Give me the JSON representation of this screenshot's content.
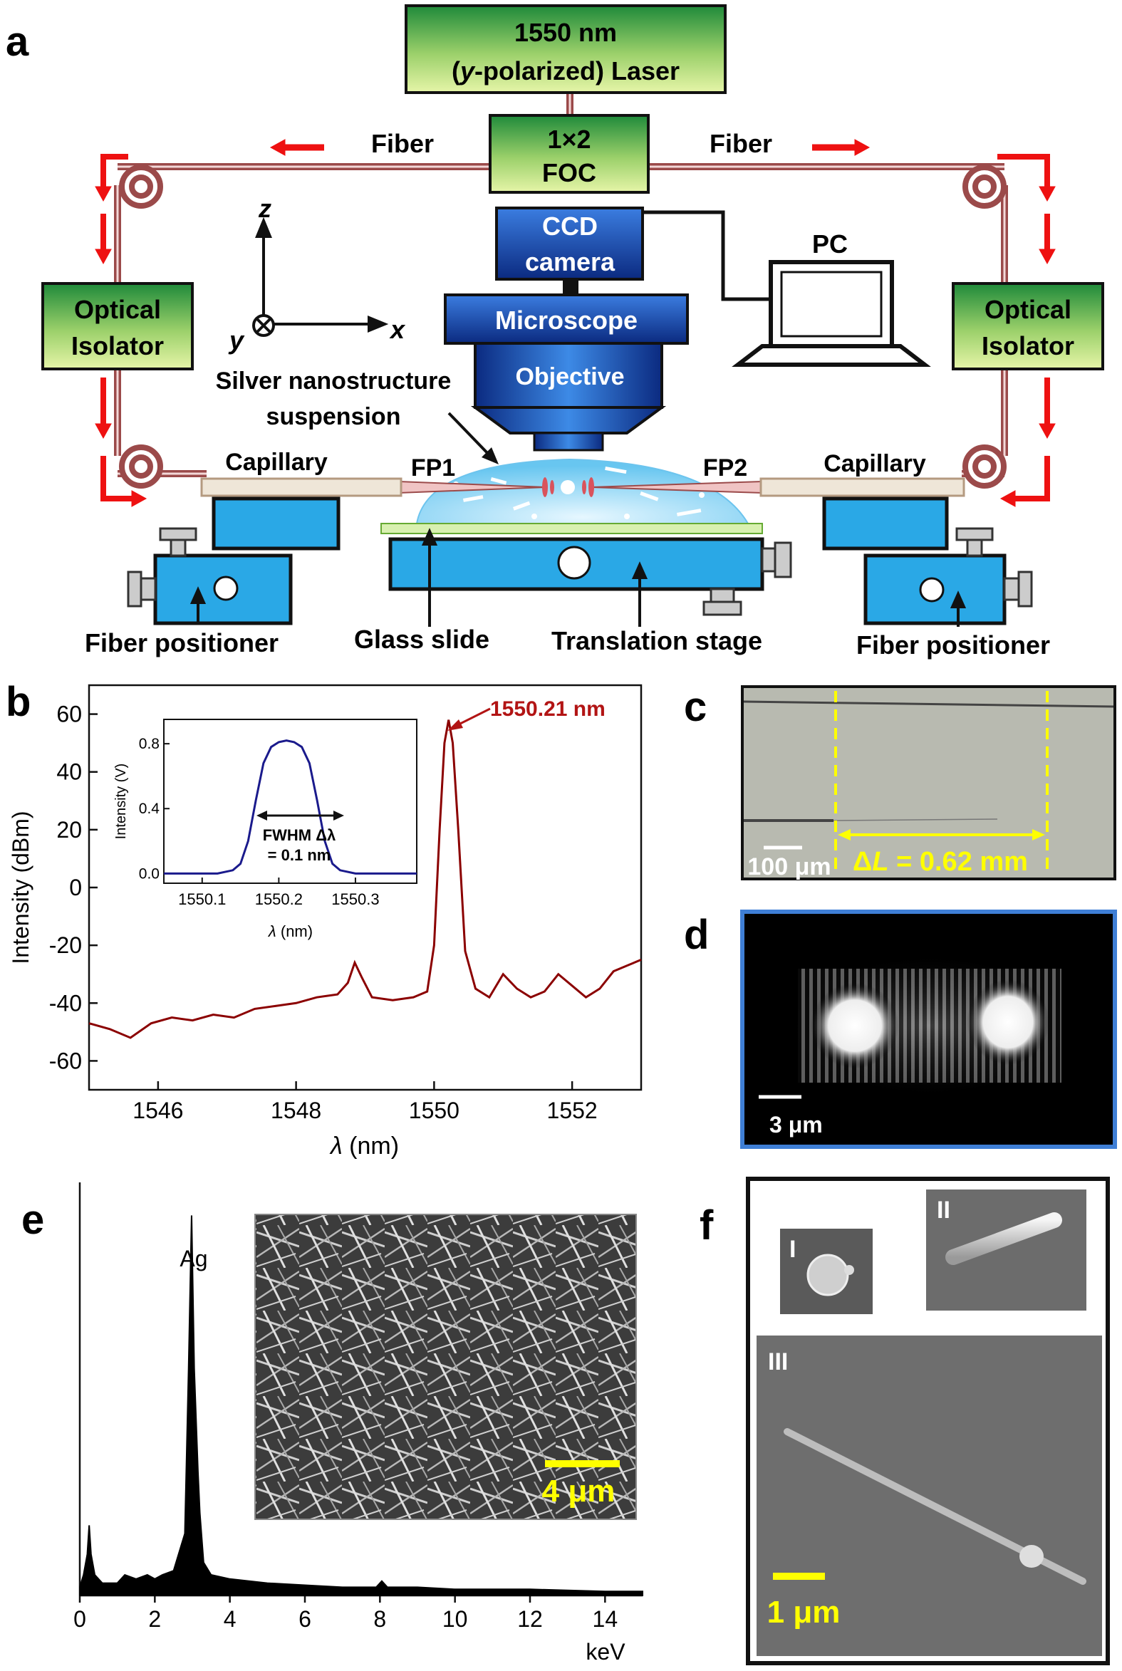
{
  "panel_a": {
    "letter": "a",
    "laser_line1": "1550 nm",
    "laser_line2_open": "(",
    "laser_line2_italic": "y",
    "laser_line2_rest": "-polarized) Laser",
    "foc_line1": "1×2",
    "foc_line2": "FOC",
    "fiber_left": "Fiber",
    "fiber_right": "Fiber",
    "ccd_line1": "CCD",
    "ccd_line2": "camera",
    "pc": "PC",
    "microscope": "Microscope",
    "objective": "Objective",
    "isolator_line1": "Optical",
    "isolator_line2": "Isolator",
    "axis_z": "z",
    "axis_x": "x",
    "axis_y": "y",
    "suspension_line1": "Silver nanostructure",
    "suspension_line2": "suspension",
    "capillary": "Capillary",
    "fp1": "FP1",
    "fp2": "FP2",
    "fiber_positioner": "Fiber positioner",
    "glass_slide": "Glass slide",
    "translation_stage": "Translation stage",
    "colors": {
      "green_dark": "#1f8a3a",
      "green_light": "#d9f0a0",
      "blue": "#2aa8e6",
      "fiber": "#9b4a4a",
      "arrow_red": "#ee1111"
    }
  },
  "panel_b": {
    "letter": "b",
    "peak_label": "1550.21 nm",
    "inset_fwhm1": "FWHM Δλ",
    "inset_fwhm2": "= 0.1 nm",
    "chart_data": {
      "type": "line",
      "xlabel_symbol": "λ",
      "xlabel_unit": " (nm)",
      "ylabel": "Intensity (dBm)",
      "xlim": [
        1545,
        1553
      ],
      "ylim": [
        -70,
        70
      ],
      "xticks": [
        1546,
        1548,
        1550,
        1552
      ],
      "yticks": [
        -60,
        -40,
        -20,
        0,
        20,
        40,
        60
      ],
      "series": [
        {
          "color": "#8b0000",
          "x": [
            1545.0,
            1545.3,
            1545.6,
            1545.9,
            1546.2,
            1546.5,
            1546.8,
            1547.1,
            1547.4,
            1547.7,
            1548.0,
            1548.3,
            1548.6,
            1548.75,
            1548.85,
            1548.95,
            1549.1,
            1549.4,
            1549.7,
            1549.9,
            1550.0,
            1550.08,
            1550.15,
            1550.21,
            1550.27,
            1550.35,
            1550.45,
            1550.6,
            1550.8,
            1551.0,
            1551.2,
            1551.4,
            1551.6,
            1551.8,
            1552.0,
            1552.2,
            1552.4,
            1552.6,
            1552.8,
            1553.0
          ],
          "y": [
            -47,
            -49,
            -52,
            -47,
            -45,
            -46,
            -44,
            -45,
            -42,
            -41,
            -40,
            -38,
            -37,
            -33,
            -26,
            -31,
            -38,
            -39,
            -38,
            -36,
            -20,
            20,
            50,
            58,
            50,
            20,
            -22,
            -35,
            -38,
            -30,
            -35,
            -38,
            -36,
            -30,
            -34,
            -38,
            -35,
            -29,
            -27,
            -25
          ]
        }
      ],
      "inset": {
        "type": "line",
        "xlabel_symbol": "λ",
        "xlabel_unit": " (nm)",
        "ylabel": "Intensity (V)",
        "xlim": [
          1550.05,
          1550.38
        ],
        "ylim": [
          -0.06,
          0.95
        ],
        "xticks": [
          1550.1,
          1550.2,
          1550.3
        ],
        "yticks": [
          0.0,
          0.4,
          0.8
        ],
        "series": [
          {
            "color": "#1a1a8c",
            "x": [
              1550.05,
              1550.12,
              1550.14,
              1550.15,
              1550.16,
              1550.17,
              1550.18,
              1550.19,
              1550.2,
              1550.21,
              1550.22,
              1550.23,
              1550.24,
              1550.25,
              1550.26,
              1550.27,
              1550.28,
              1550.3,
              1550.38
            ],
            "y": [
              0.0,
              0.0,
              0.02,
              0.06,
              0.2,
              0.45,
              0.68,
              0.78,
              0.81,
              0.82,
              0.81,
              0.78,
              0.68,
              0.45,
              0.2,
              0.06,
              0.02,
              0.0,
              0.0
            ]
          }
        ]
      }
    }
  },
  "panel_c": {
    "letter": "c",
    "scale": "100 μm",
    "delta_prefix": "Δ",
    "delta_italic": "L",
    "delta_rest": " = 0.62 mm"
  },
  "panel_d": {
    "letter": "d",
    "scale": "3 μm"
  },
  "panel_e": {
    "letter": "e",
    "peak_label": "Ag",
    "scale": "4 μm",
    "chart_data": {
      "type": "area",
      "xlabel": "keV",
      "xlim": [
        0,
        15
      ],
      "ylim": [
        0,
        1
      ],
      "xticks": [
        0,
        2,
        4,
        6,
        8,
        10,
        12,
        14
      ],
      "series": [
        {
          "color": "#000000",
          "x": [
            0.0,
            0.1,
            0.2,
            0.25,
            0.3,
            0.4,
            0.6,
            1.0,
            1.2,
            1.5,
            1.8,
            2.0,
            2.2,
            2.5,
            2.8,
            2.9,
            2.98,
            3.05,
            3.15,
            3.2,
            3.3,
            3.5,
            4.0,
            5.0,
            6.0,
            7.0,
            7.9,
            8.05,
            8.2,
            9.0,
            10.0,
            12.0,
            14.0,
            15.0
          ],
          "y": [
            0.02,
            0.05,
            0.1,
            0.17,
            0.1,
            0.05,
            0.03,
            0.03,
            0.05,
            0.04,
            0.05,
            0.04,
            0.05,
            0.06,
            0.15,
            0.55,
            0.92,
            0.55,
            0.3,
            0.2,
            0.08,
            0.05,
            0.04,
            0.03,
            0.025,
            0.02,
            0.02,
            0.035,
            0.02,
            0.02,
            0.015,
            0.015,
            0.01,
            0.01
          ]
        }
      ]
    }
  },
  "panel_f": {
    "letter": "f",
    "label_I": "I",
    "label_II": "II",
    "label_III": "III",
    "scale": "1 μm"
  }
}
